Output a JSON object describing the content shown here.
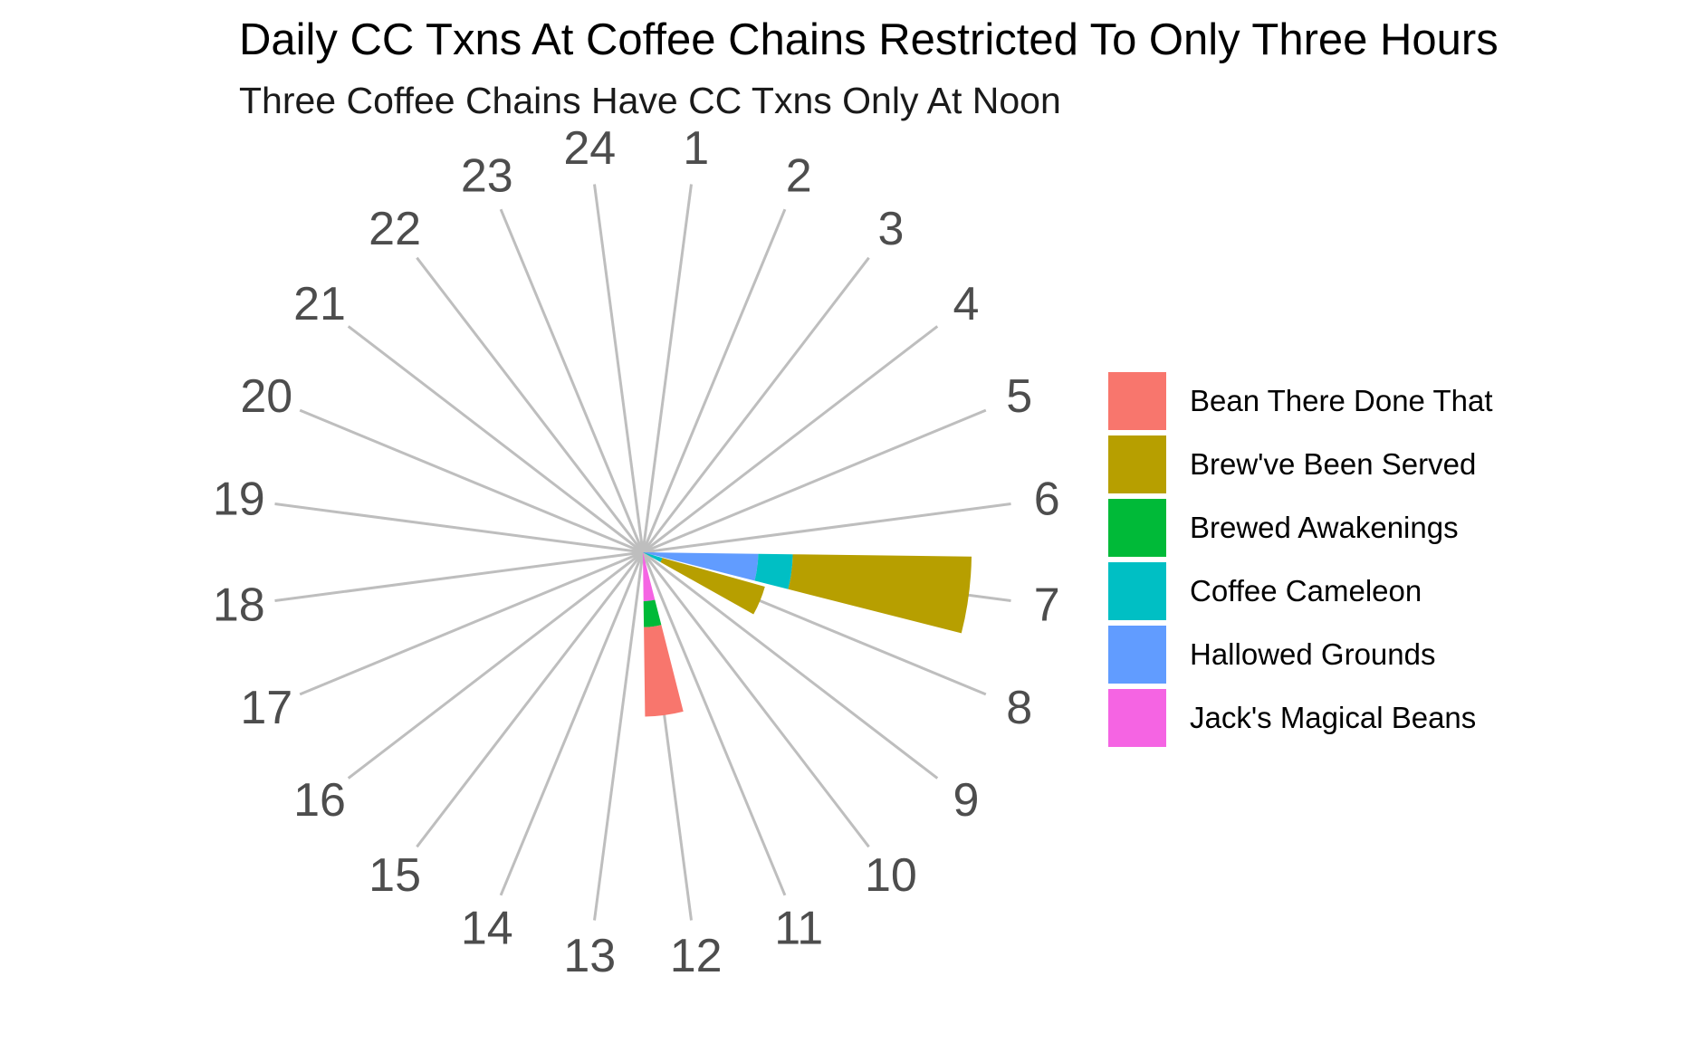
{
  "chart_data": {
    "type": "bar",
    "coord": "polar",
    "title": "Daily CC Txns At Coffee Chains Restricted To Only Three Hours",
    "subtitle": "Three Coffee Chains Have CC Txns Only At Noon",
    "categories": [
      "1",
      "2",
      "3",
      "4",
      "5",
      "6",
      "7",
      "8",
      "9",
      "10",
      "11",
      "12",
      "13",
      "14",
      "15",
      "16",
      "17",
      "18",
      "19",
      "20",
      "21",
      "22",
      "23",
      "24"
    ],
    "stacked": true,
    "series": [
      {
        "name": "Bean There Done That",
        "color": "#F8766D",
        "values": [
          0,
          0,
          0,
          0,
          0,
          0,
          0,
          0,
          0,
          0,
          0,
          31,
          0,
          0,
          0,
          0,
          0,
          0,
          0,
          0,
          0,
          0,
          0,
          0
        ]
      },
      {
        "name": "Brew've Been Served",
        "color": "#B79F00",
        "values": [
          0,
          0,
          0,
          0,
          0,
          0,
          62,
          37,
          0,
          0,
          0,
          0,
          0,
          0,
          0,
          0,
          0,
          0,
          0,
          0,
          0,
          0,
          0,
          0
        ]
      },
      {
        "name": "Brewed Awakenings",
        "color": "#00BA38",
        "values": [
          0,
          0,
          0,
          0,
          0,
          0,
          0,
          0,
          0,
          0,
          0,
          9,
          0,
          0,
          0,
          0,
          0,
          0,
          0,
          0,
          0,
          0,
          0,
          0
        ]
      },
      {
        "name": "Coffee Cameleon",
        "color": "#00BFC4",
        "values": [
          0,
          0,
          0,
          0,
          0,
          0,
          12,
          7,
          0,
          0,
          0,
          0,
          0,
          0,
          0,
          0,
          0,
          0,
          0,
          0,
          0,
          0,
          0,
          0
        ]
      },
      {
        "name": "Hallowed Grounds",
        "color": "#619CFF",
        "values": [
          0,
          0,
          0,
          0,
          0,
          0,
          40,
          0,
          0,
          0,
          0,
          0,
          0,
          0,
          0,
          0,
          0,
          0,
          0,
          0,
          0,
          0,
          0,
          0
        ]
      },
      {
        "name": "Jack's Magical Beans",
        "color": "#F564E3",
        "values": [
          0,
          0,
          0,
          0,
          0,
          0,
          0,
          0,
          0,
          0,
          0,
          17,
          0,
          0,
          0,
          0,
          0,
          0,
          0,
          0,
          0,
          0,
          0,
          0
        ]
      }
    ],
    "grid": true,
    "legend_position": "right"
  }
}
